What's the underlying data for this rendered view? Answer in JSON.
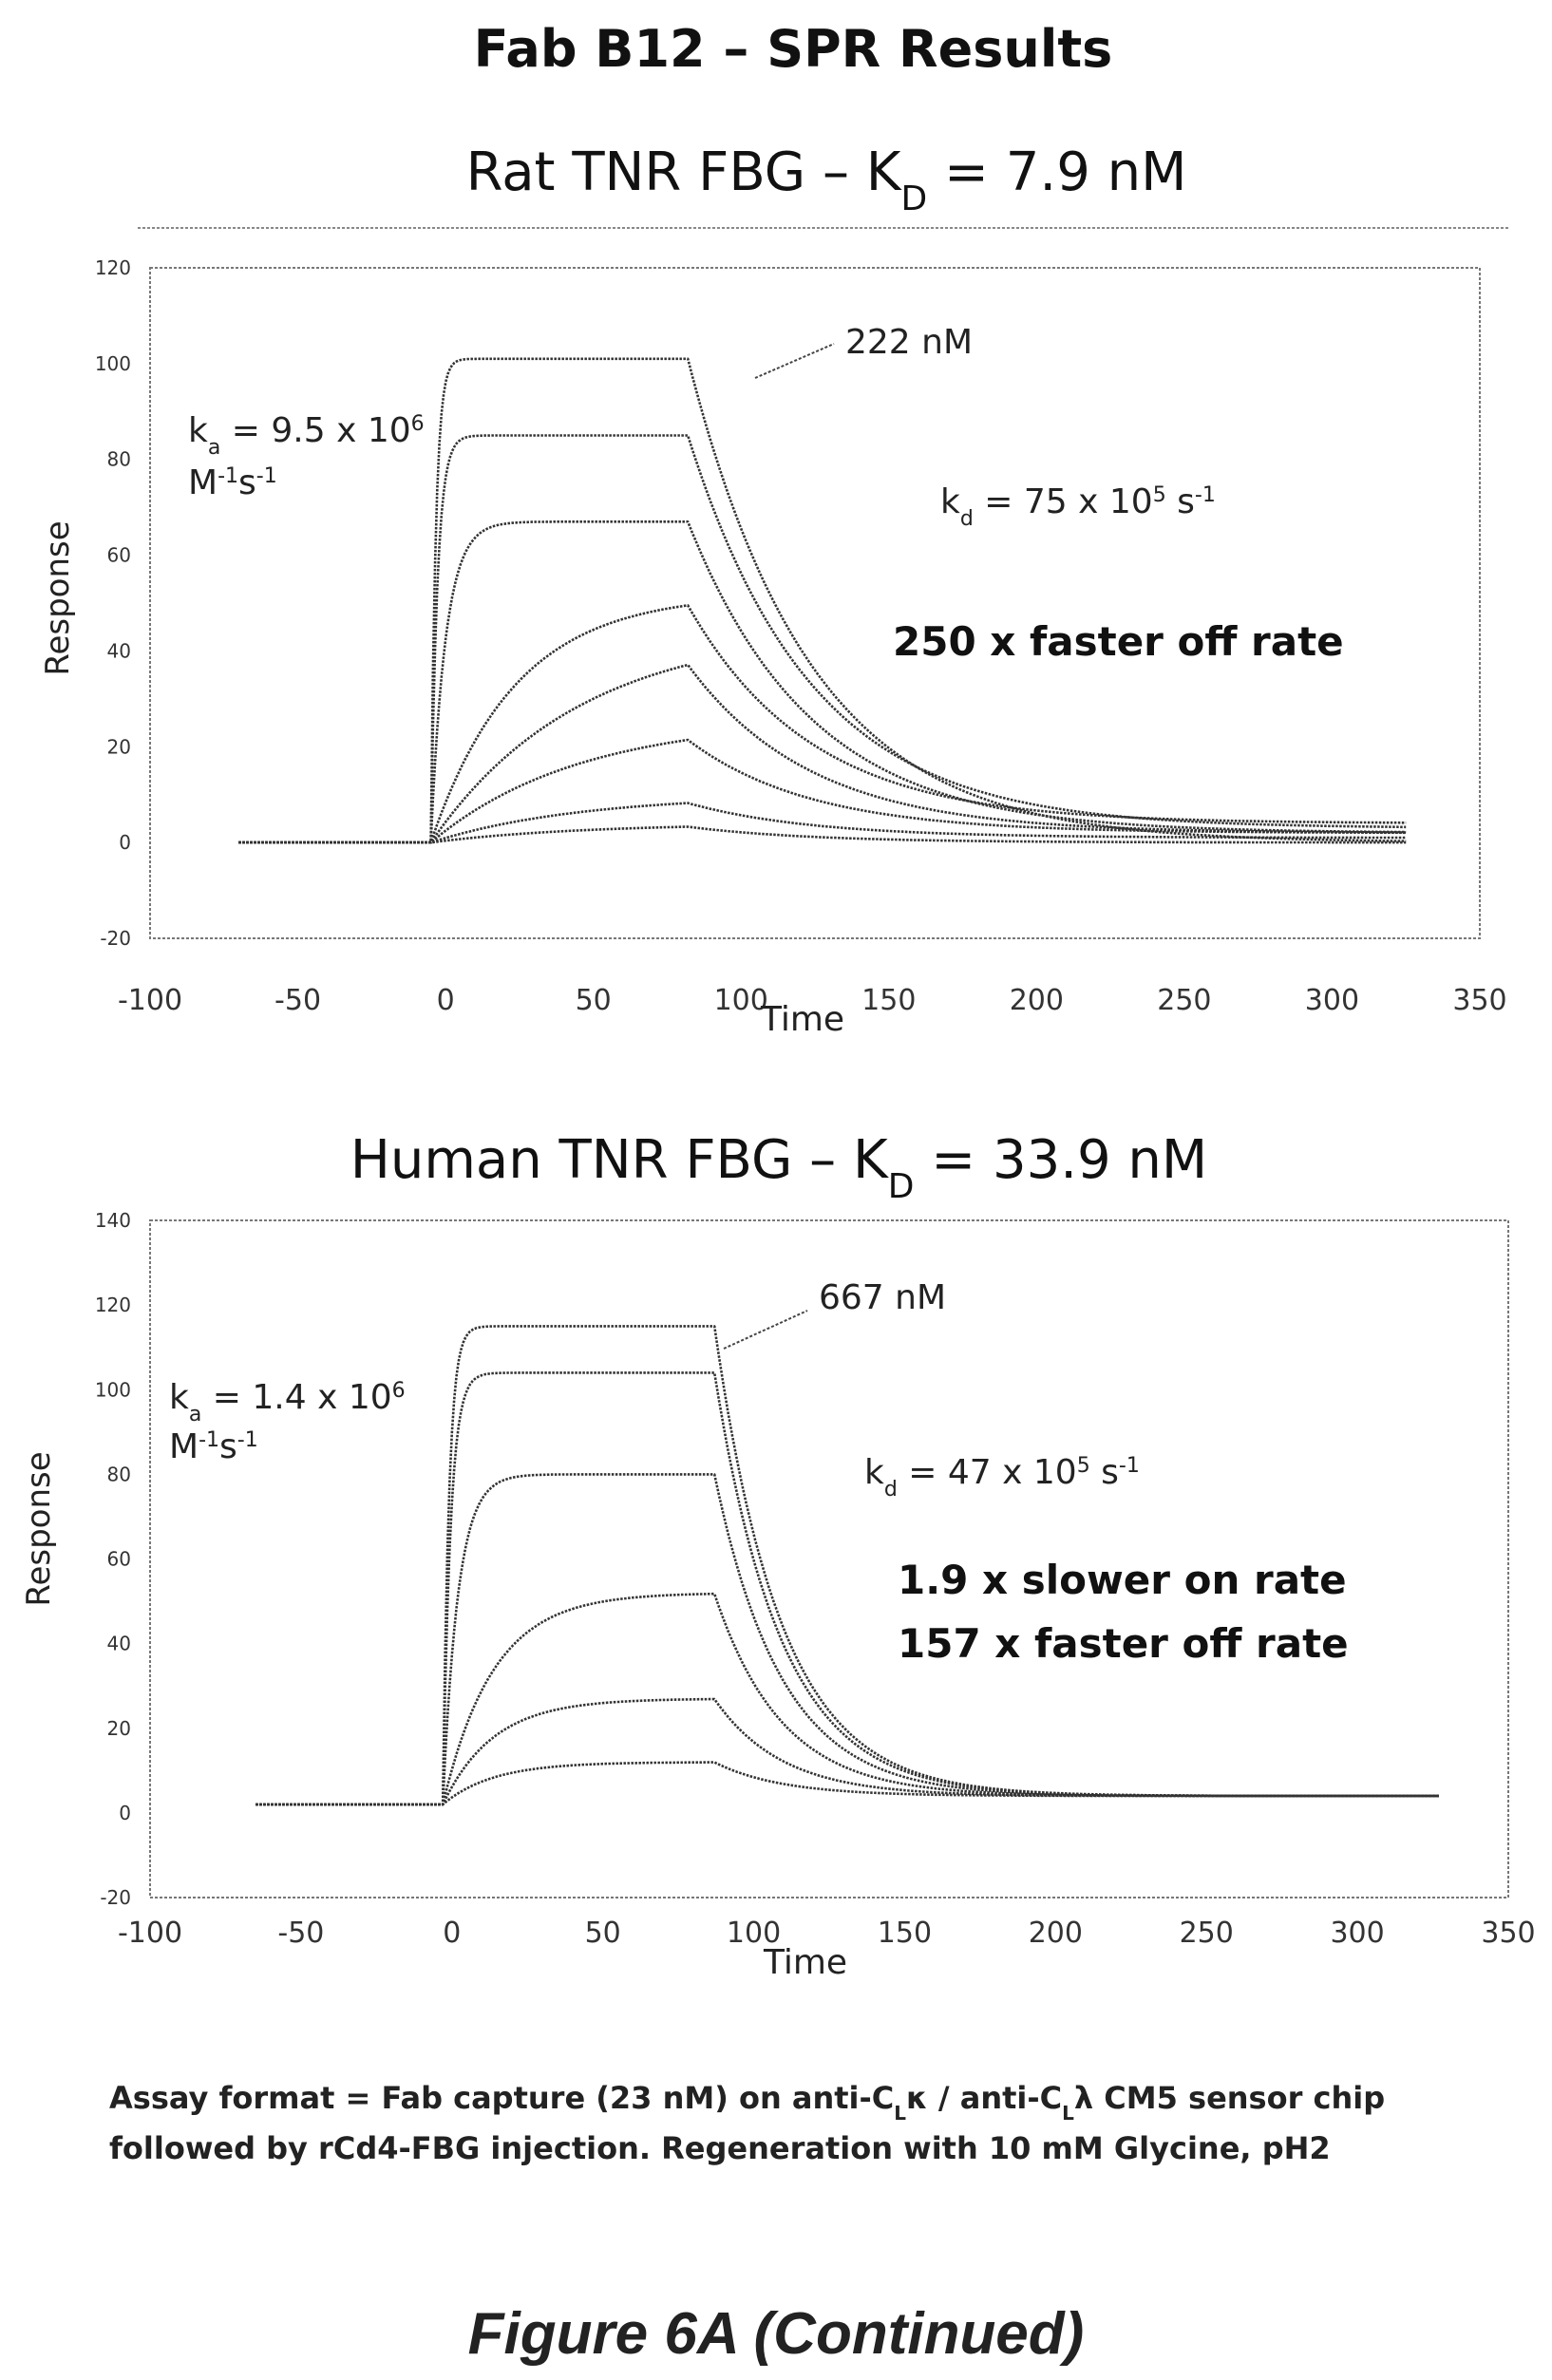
{
  "header": {
    "title": "Fab B12 – SPR Results"
  },
  "chart_data": [
    {
      "type": "line",
      "title": "Rat TNR FBG – K",
      "title_sub": "D",
      "title_tail": " = 7.9 nM",
      "xlabel": "Time",
      "ylabel": "Response",
      "xlim": [
        -100,
        350
      ],
      "ylim": [
        -20,
        120
      ],
      "xticks": [
        "-100",
        "-50",
        "0",
        "50",
        "100",
        "150",
        "200",
        "250",
        "300",
        "350"
      ],
      "yticks": [
        "120",
        "100",
        "80",
        "60",
        "40",
        "20",
        "0",
        "-20"
      ],
      "xtick_values": [
        -100,
        -50,
        0,
        50,
        100,
        150,
        200,
        250,
        300,
        350
      ],
      "ytick_values": [
        120,
        100,
        80,
        60,
        40,
        20,
        0,
        -20
      ],
      "injection": {
        "start": -5,
        "end": 82,
        "baseline_start": -70,
        "end_time": 325
      },
      "series": [
        {
          "values": {
            "plateau": 101,
            "association_rate": 0.6,
            "offset": 0,
            "tail": 0
          }
        },
        {
          "values": {
            "plateau": 85,
            "association_rate": 0.45,
            "offset": 0,
            "tail": 3
          }
        },
        {
          "values": {
            "plateau": 67,
            "association_rate": 0.2,
            "offset": 0,
            "tail": 2
          }
        },
        {
          "values": {
            "plateau": 52,
            "association_rate": 0.035,
            "offset": 0,
            "tail": 4
          }
        },
        {
          "values": {
            "plateau": 45,
            "association_rate": 0.02,
            "offset": 0,
            "tail": 2
          }
        },
        {
          "values": {
            "plateau": 26,
            "association_rate": 0.02,
            "offset": 0,
            "tail": 2
          }
        },
        {
          "values": {
            "plateau": 10,
            "association_rate": 0.02,
            "offset": 0,
            "tail": 1
          }
        },
        {
          "values": {
            "plateau": 4,
            "association_rate": 0.02,
            "offset": 0,
            "tail": 0
          }
        }
      ],
      "dissociation_rate": 0.024,
      "annotations": {
        "conc": "222 nM",
        "ka_a": "k",
        "ka_sub": "a",
        "ka_b": " = 9.5 x 10",
        "ka_sup": "6",
        "ka_unit_a": "M",
        "ka_unit_sup1": "-1",
        "ka_unit_b": "s",
        "ka_unit_sup2": "-1",
        "kd_a": "k",
        "kd_sub": "d",
        "kd_b": " = 75 x 10",
        "kd_sup": "5",
        "kd_c": " s",
        "kd_sup2": "-1",
        "note1": "250 x faster off rate",
        "note2": ""
      }
    },
    {
      "type": "line",
      "title": "Human TNR FBG – K",
      "title_sub": "D",
      "title_tail": " = 33.9 nM",
      "xlabel": "Time",
      "ylabel": "Response",
      "xlim": [
        -100,
        350
      ],
      "ylim": [
        -20,
        140
      ],
      "xticks": [
        "-100",
        "-50",
        "0",
        "50",
        "100",
        "150",
        "200",
        "250",
        "300",
        "350"
      ],
      "yticks": [
        "140",
        "120",
        "100",
        "80",
        "60",
        "40",
        "20",
        "0",
        "-20"
      ],
      "xtick_values": [
        -100,
        -50,
        0,
        50,
        100,
        150,
        200,
        250,
        300,
        350
      ],
      "ytick_values": [
        140,
        120,
        100,
        80,
        60,
        40,
        20,
        0,
        -20
      ],
      "injection": {
        "start": -3,
        "end": 87,
        "baseline_start": -65,
        "end_time": 327
      },
      "series": [
        {
          "values": {
            "plateau": 113,
            "association_rate": 0.5,
            "offset": 2,
            "tail": 2
          }
        },
        {
          "values": {
            "plateau": 102,
            "association_rate": 0.4,
            "offset": 2,
            "tail": 2
          }
        },
        {
          "values": {
            "plateau": 78,
            "association_rate": 0.2,
            "offset": 2,
            "tail": 2
          }
        },
        {
          "values": {
            "plateau": 50,
            "association_rate": 0.06,
            "offset": 2,
            "tail": 2
          }
        },
        {
          "values": {
            "plateau": 25,
            "association_rate": 0.06,
            "offset": 2,
            "tail": 2
          }
        },
        {
          "values": {
            "plateau": 10,
            "association_rate": 0.06,
            "offset": 2,
            "tail": 2
          }
        }
      ],
      "dissociation_rate": 0.045,
      "annotations": {
        "conc": "667 nM",
        "ka_a": "k",
        "ka_sub": "a",
        "ka_b": " = 1.4 x 10",
        "ka_sup": "6",
        "ka_unit_a": "M",
        "ka_unit_sup1": "-1",
        "ka_unit_b": "s",
        "ka_unit_sup2": "-1",
        "kd_a": "k",
        "kd_sub": "d",
        "kd_b": " = 47 x 10",
        "kd_sup": "5",
        "kd_c": " s",
        "kd_sup2": "-1",
        "note1": "1.9 x slower on rate",
        "note2": "157 x faster off rate"
      }
    }
  ],
  "footer": {
    "line1_a": "Assay format = Fab capture (23 nM) on anti-C",
    "line1_sub1": "L",
    "line1_b": "κ / anti-C",
    "line1_sub2": "L",
    "line1_c": "λ CM5 sensor chip",
    "line2": "followed by rCd4-FBG injection. Regeneration with 10 mM Glycine, pH2"
  },
  "figure_label": "Figure 6A (Continued)",
  "colors": {
    "line": "#333333",
    "grid_frame": "#777777",
    "text": "#111111"
  }
}
